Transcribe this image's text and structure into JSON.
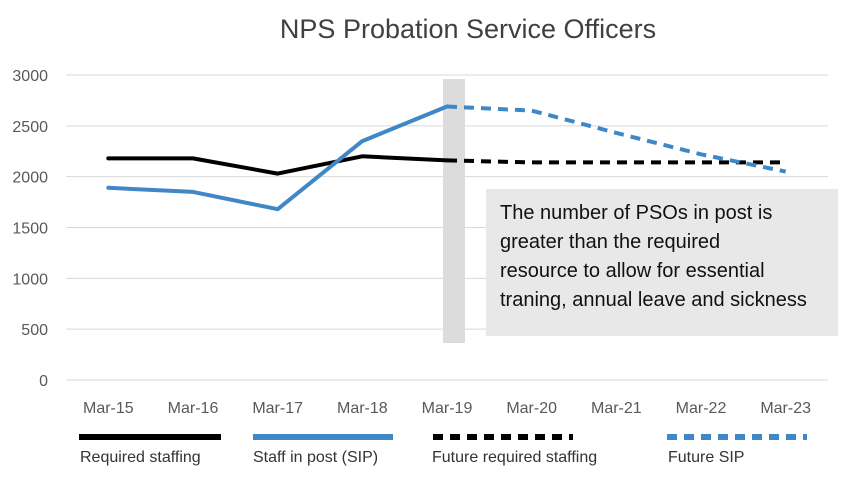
{
  "chart_data": {
    "type": "line",
    "title": "NPS Probation Service Officers",
    "categories": [
      "Mar-15",
      "Mar-16",
      "Mar-17",
      "Mar-18",
      "Mar-19",
      "Mar-20",
      "Mar-21",
      "Mar-22",
      "Mar-23"
    ],
    "ylim": [
      0,
      3000
    ],
    "yticks": [
      0,
      500,
      1000,
      1500,
      2000,
      2500,
      3000
    ],
    "grid": true,
    "legend_position": "bottom",
    "series": [
      {
        "name": "Required staffing",
        "color": "#000000",
        "style": "solid",
        "values": [
          2180,
          2180,
          2030,
          2200,
          2160,
          null,
          null,
          null,
          null
        ]
      },
      {
        "name": "Staff in post (SIP)",
        "color": "#3f87c6",
        "style": "solid",
        "values": [
          1890,
          1850,
          1680,
          2350,
          2690,
          null,
          null,
          null,
          null
        ]
      },
      {
        "name": "Future required staffing",
        "color": "#000000",
        "style": "dashed",
        "values": [
          null,
          null,
          null,
          null,
          2160,
          2140,
          2140,
          2140,
          2140
        ]
      },
      {
        "name": "Future SIP",
        "color": "#3f87c6",
        "style": "dashed",
        "values": [
          null,
          null,
          null,
          null,
          2690,
          2650,
          2430,
          2220,
          2050
        ]
      }
    ],
    "annotation": {
      "lines": [
        "The number of PSOs in post is",
        "greater than the required",
        "resource to allow for essential",
        "traning, annual leave and sickness"
      ]
    }
  }
}
